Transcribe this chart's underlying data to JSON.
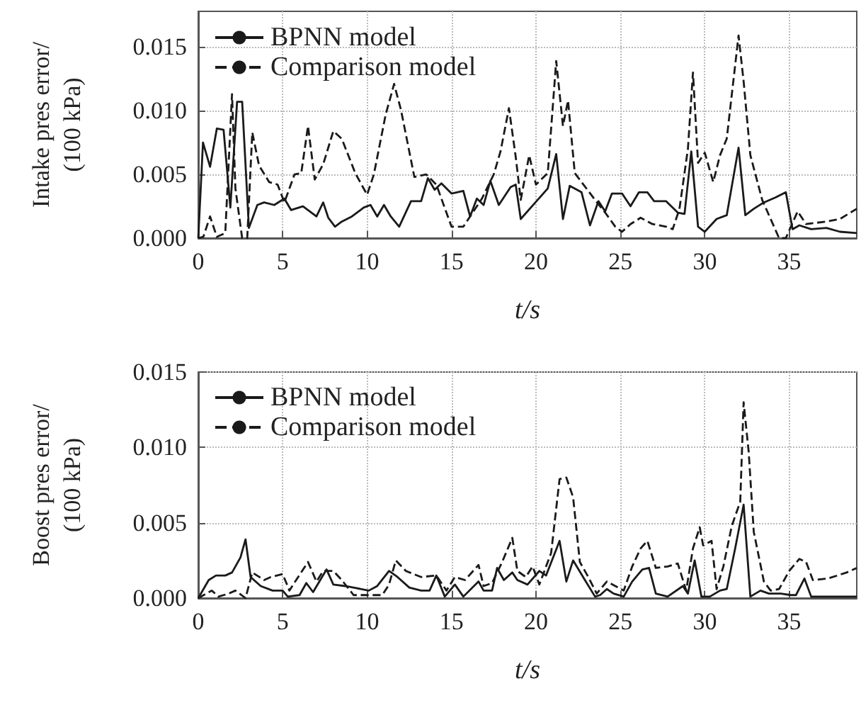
{
  "chart_data": [
    {
      "type": "line",
      "xlabel": "t/s",
      "ylabel": "Intake pres error/\n(100 kPa)",
      "xlim": [
        0,
        39
      ],
      "ylim": [
        0,
        0.0178
      ],
      "xticks": [
        0,
        5,
        10,
        15,
        20,
        25,
        30,
        35
      ],
      "yticks": [
        {
          "value": 0,
          "label": "0.000"
        },
        {
          "value": 0.005,
          "label": "0.005"
        },
        {
          "value": 0.01,
          "label": "0.010"
        },
        {
          "value": 0.015,
          "label": "0.015"
        }
      ],
      "grid": true,
      "legend": "top left",
      "marker": "none",
      "series": [
        {
          "name": "BPNN model",
          "color": "#1a1a1a",
          "line_style": "solid",
          "x": [
            0,
            0.28,
            0.7,
            1.1,
            1.5,
            1.9,
            2.3,
            2.6,
            3.0,
            3.5,
            3.9,
            4.5,
            5.1,
            5.5,
            6.2,
            7.0,
            7.4,
            7.7,
            8.1,
            8.5,
            9.1,
            9.8,
            10.2,
            10.6,
            11.0,
            11.4,
            11.9,
            12.6,
            13.2,
            13.6,
            14.0,
            14.4,
            15.0,
            15.7,
            16.1,
            16.5,
            16.9,
            17.3,
            17.8,
            18.5,
            18.8,
            19.1,
            20.7,
            21.2,
            21.6,
            22.0,
            22.7,
            23.2,
            23.7,
            24.1,
            24.5,
            25.1,
            25.6,
            26.1,
            26.6,
            27.0,
            27.7,
            28.4,
            28.8,
            29.2,
            29.6,
            30.0,
            30.7,
            31.3,
            32.0,
            32.4,
            32.9,
            33.5,
            34.2,
            34.8,
            35.2,
            35.6,
            36.3,
            37.2,
            38.0,
            39.0
          ],
          "values": [
            0,
            0.0075,
            0.0056,
            0.0086,
            0.0085,
            0.0024,
            0.0107,
            0.0107,
            0.0008,
            0.0026,
            0.0028,
            0.0026,
            0.0031,
            0.0022,
            0.0025,
            0.0017,
            0.0028,
            0.0016,
            0.0009,
            0.0013,
            0.0017,
            0.0024,
            0.0026,
            0.0017,
            0.0026,
            0.0017,
            0.0009,
            0.0029,
            0.0029,
            0.0047,
            0.0038,
            0.0043,
            0.0035,
            0.0037,
            0.0017,
            0.0031,
            0.0026,
            0.0045,
            0.0026,
            0.004,
            0.0042,
            0.0015,
            0.0039,
            0.0066,
            0.0015,
            0.0041,
            0.0036,
            0.001,
            0.0029,
            0.0021,
            0.0035,
            0.0035,
            0.0025,
            0.0036,
            0.0036,
            0.0029,
            0.0029,
            0.002,
            0.0019,
            0.0068,
            0.0009,
            0.0005,
            0.0015,
            0.0018,
            0.0071,
            0.0018,
            0.0023,
            0.0028,
            0.0032,
            0.0036,
            0.0007,
            0.001,
            0.0007,
            0.0008,
            0.0005,
            0.0004
          ]
        },
        {
          "name": "Comparison model",
          "color": "#1a1a1a",
          "line_style": "dashed",
          "x": [
            0,
            0.3,
            0.7,
            1.1,
            1.6,
            2.0,
            2.2,
            2.6,
            2.9,
            3.2,
            3.6,
            4.2,
            4.7,
            5.1,
            5.7,
            6.1,
            6.5,
            6.9,
            7.4,
            8.0,
            8.5,
            9.3,
            10.0,
            10.4,
            11.1,
            11.6,
            12.0,
            12.8,
            13.5,
            14.1,
            15.0,
            15.7,
            16.3,
            16.8,
            17.5,
            17.9,
            18.4,
            18.8,
            19.1,
            19.6,
            20.0,
            20.7,
            21.2,
            21.6,
            21.9,
            22.3,
            23.1,
            23.5,
            24.1,
            24.7,
            25.1,
            25.6,
            26.2,
            26.9,
            27.7,
            28.1,
            28.5,
            29.0,
            29.3,
            29.6,
            30.0,
            30.5,
            30.9,
            31.3,
            32.0,
            32.3,
            32.7,
            33.4,
            34.0,
            34.4,
            34.8,
            35.5,
            36.0,
            37.2,
            38.0,
            39.0
          ],
          "values": [
            0,
            0.0001,
            0.0017,
            0.0001,
            0.0004,
            0.0113,
            0.0039,
            0,
            0,
            0.0083,
            0.0057,
            0.0044,
            0.0042,
            0.0028,
            0.005,
            0.0051,
            0.0088,
            0.0046,
            0.0058,
            0.0084,
            0.0078,
            0.0051,
            0.0034,
            0.005,
            0.0097,
            0.0121,
            0.0101,
            0.0048,
            0.005,
            0.0042,
            0.0009,
            0.0009,
            0.0021,
            0.0031,
            0.005,
            0.0068,
            0.0102,
            0.0064,
            0.003,
            0.0065,
            0.0042,
            0.0051,
            0.0139,
            0.0088,
            0.0108,
            0.0051,
            0.0037,
            0.003,
            0.002,
            0.0009,
            0.0005,
            0.0011,
            0.0016,
            0.0011,
            0.0009,
            0.0007,
            0.0023,
            0.007,
            0.013,
            0.0059,
            0.0067,
            0.0044,
            0.0065,
            0.0078,
            0.0159,
            0.0123,
            0.0065,
            0.003,
            0.0012,
            0,
            0,
            0.0021,
            0.0011,
            0.0013,
            0.0015,
            0.0023
          ]
        }
      ]
    },
    {
      "type": "line",
      "xlabel": "t/s",
      "ylabel": "Boost pres error/\n(100 kPa)",
      "xlim": [
        0,
        39
      ],
      "ylim": [
        0,
        0.015
      ],
      "xticks": [
        0,
        5,
        10,
        15,
        20,
        25,
        30,
        35
      ],
      "yticks": [
        {
          "value": 0,
          "label": "0.000"
        },
        {
          "value": 0.005,
          "label": "0.005"
        },
        {
          "value": 0.01,
          "label": "0.010"
        },
        {
          "value": 0.015,
          "label": "0.015"
        }
      ],
      "grid": true,
      "legend": "top left",
      "marker": "none",
      "series": [
        {
          "name": "BPNN model",
          "color": "#1a1a1a",
          "line_style": "solid",
          "x": [
            0,
            0.62,
            1.05,
            1.6,
            2.0,
            2.5,
            2.8,
            3.1,
            3.7,
            4.4,
            5.0,
            5.3,
            6.0,
            6.4,
            6.8,
            7.6,
            8.0,
            8.7,
            9.2,
            10.1,
            10.6,
            11.3,
            11.8,
            12.5,
            13.2,
            13.7,
            14.1,
            14.6,
            15.2,
            15.7,
            16.6,
            16.9,
            17.4,
            17.7,
            18.1,
            18.6,
            18.9,
            19.5,
            20.2,
            20.6,
            21.4,
            21.8,
            22.2,
            22.9,
            23.5,
            23.8,
            24.2,
            24.6,
            25.2,
            25.7,
            26.3,
            26.7,
            27.1,
            27.8,
            28.7,
            29.0,
            29.4,
            29.8,
            30.3,
            30.9,
            31.3,
            31.8,
            32.3,
            32.7,
            33.3,
            33.8,
            34.5,
            35.1,
            35.4,
            35.9,
            36.3,
            37.7,
            39.0
          ],
          "values": [
            0,
            0.0012,
            0.0015,
            0.0015,
            0.0017,
            0.0027,
            0.0039,
            0.0014,
            0.0008,
            0.0005,
            0.0005,
            0.0001,
            0.0002,
            0.001,
            0.0004,
            0.0019,
            0.0009,
            0.0008,
            0.0007,
            0.0005,
            0.0008,
            0.0018,
            0.0014,
            0.0007,
            0.0005,
            0.0005,
            0.0015,
            0.0001,
            0.0009,
            0.0001,
            0.0011,
            0.0005,
            0.0005,
            0.002,
            0.0012,
            0.0017,
            0.0012,
            0.0009,
            0.0018,
            0.0015,
            0.0038,
            0.0011,
            0.0025,
            0.0012,
            0.0001,
            0.0002,
            0.0006,
            0.0003,
            0.0001,
            0.0011,
            0.0019,
            0.002,
            0.0003,
            0.0001,
            0.0008,
            0.0003,
            0.0025,
            0.0001,
            0.0001,
            0.0005,
            0.0006,
            0.0033,
            0.0062,
            0.0001,
            0.0005,
            0.0003,
            0.0003,
            0.0002,
            0.0002,
            0.0013,
            0.0001,
            0.0001,
            0.0001
          ]
        },
        {
          "name": "Comparison model",
          "color": "#1a1a1a",
          "line_style": "dashed",
          "x": [
            0,
            0.8,
            1.2,
            1.8,
            2.2,
            2.8,
            3.2,
            3.9,
            4.3,
            5.0,
            5.4,
            5.8,
            6.5,
            7.0,
            7.4,
            8.0,
            8.5,
            9.2,
            10.1,
            10.9,
            11.3,
            11.7,
            12.3,
            13.2,
            14.1,
            14.7,
            15.2,
            15.8,
            16.6,
            16.9,
            17.4,
            18.0,
            18.6,
            18.9,
            19.4,
            19.8,
            20.2,
            20.6,
            20.9,
            21.4,
            21.8,
            22.2,
            22.6,
            23.1,
            23.6,
            24.2,
            24.7,
            25.2,
            25.7,
            26.2,
            26.6,
            27.1,
            27.8,
            28.4,
            28.9,
            29.3,
            29.7,
            29.9,
            30.4,
            30.7,
            31.1,
            31.6,
            32.1,
            32.3,
            32.6,
            32.9,
            33.5,
            33.9,
            34.4,
            35.0,
            35.6,
            36.0,
            36.4,
            37.3,
            38.4,
            39.0
          ],
          "values": [
            0,
            0.0005,
            0.0001,
            0.0003,
            0.0005,
            0,
            0.0017,
            0.0012,
            0.0014,
            0.0016,
            0.0005,
            0.0012,
            0.0024,
            0.0011,
            0.0018,
            0.0018,
            0.0012,
            0.0002,
            0.0002,
            0.0002,
            0.0009,
            0.0025,
            0.0018,
            0.0014,
            0.0015,
            0.0005,
            0.0014,
            0.0012,
            0.0022,
            0.0008,
            0.001,
            0.0024,
            0.004,
            0.0018,
            0.0014,
            0.0021,
            0.0009,
            0.0021,
            0.003,
            0.0079,
            0.008,
            0.0067,
            0.0024,
            0.0014,
            0.0003,
            0.0011,
            0.0008,
            0.0005,
            0.0021,
            0.0033,
            0.0038,
            0.002,
            0.0021,
            0.0023,
            0.0005,
            0.0033,
            0.0047,
            0.0035,
            0.0038,
            0.0006,
            0.0021,
            0.0048,
            0.0064,
            0.013,
            0.0097,
            0.0044,
            0.0011,
            0.0005,
            0.0006,
            0.0018,
            0.0026,
            0.0024,
            0.0012,
            0.0013,
            0.0017,
            0.002
          ]
        }
      ]
    }
  ]
}
